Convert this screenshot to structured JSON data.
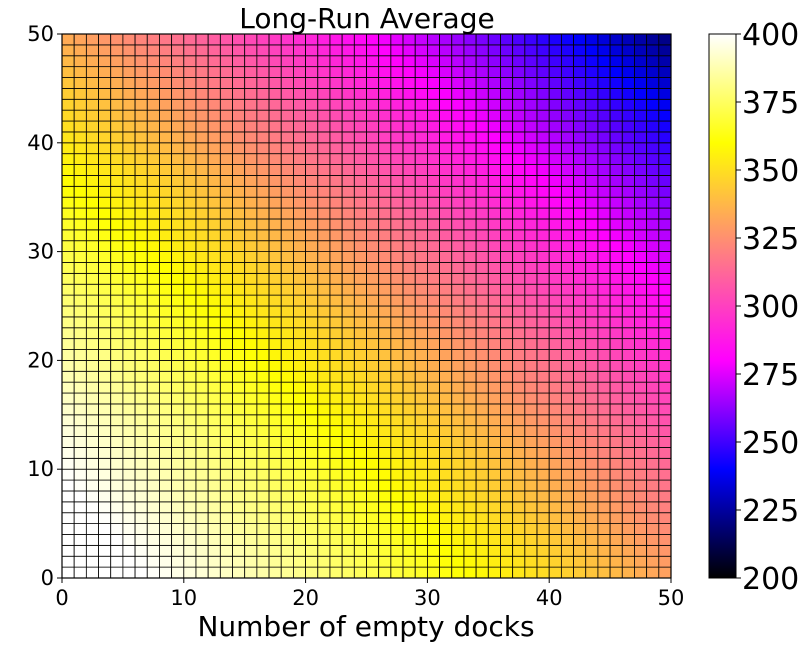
{
  "chart_data": {
    "type": "heatmap",
    "title": "Long-Run Average",
    "xlabel": "Number of empty docks",
    "ylabel": "",
    "x_range": [
      0,
      50
    ],
    "y_range": [
      0,
      50
    ],
    "n_cells_x": 50,
    "n_cells_y": 50,
    "x_ticks": [
      "0",
      "10",
      "20",
      "30",
      "40",
      "50"
    ],
    "y_ticks": [
      "0",
      "10",
      "20",
      "30",
      "40",
      "50"
    ],
    "value_range": [
      200,
      400
    ],
    "colorbar_ticks": [
      "200",
      "225",
      "250",
      "275",
      "300",
      "325",
      "350",
      "375",
      "400"
    ],
    "colormap": "gnuplot2",
    "colormap_stops": [
      "#000000",
      "#0000ff",
      "#ff00ff",
      "#ff8080",
      "#ffff00",
      "#ffffff"
    ],
    "grid_line_color": "#000000",
    "surface_model": {
      "description_free": true,
      "peak_value": 400,
      "peak_location": [
        5,
        5
      ],
      "anchor_values": [
        {
          "x": 5,
          "y": 5,
          "value": 400
        },
        {
          "x": 20,
          "y": 5,
          "value": 378
        },
        {
          "x": 5,
          "y": 22,
          "value": 378
        },
        {
          "x": 30,
          "y": 5,
          "value": 355
        },
        {
          "x": 50,
          "y": 0,
          "value": 330
        },
        {
          "x": 0,
          "y": 50,
          "value": 330
        },
        {
          "x": 25,
          "y": 25,
          "value": 325
        },
        {
          "x": 35,
          "y": 35,
          "value": 295
        },
        {
          "x": 50,
          "y": 25,
          "value": 290
        },
        {
          "x": 25,
          "y": 50,
          "value": 290
        },
        {
          "x": 40,
          "y": 45,
          "value": 258
        },
        {
          "x": 50,
          "y": 50,
          "value": 212
        }
      ]
    }
  }
}
